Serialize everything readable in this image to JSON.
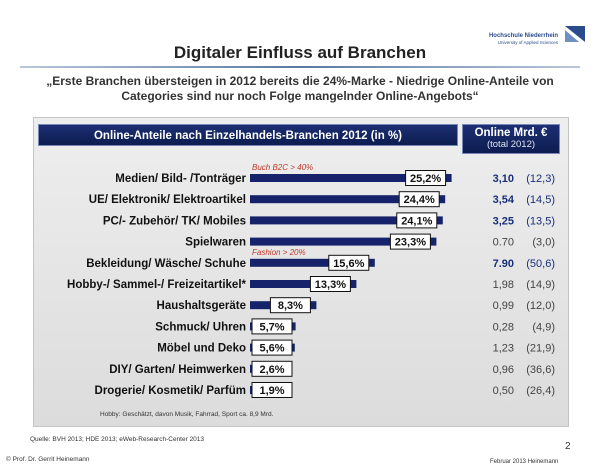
{
  "slide": {
    "title": "Digitaler Einfluss auf Branchen",
    "subtitle": "„Erste Branchen übersteigen in 2012 bereits die 24%-Marke - Niedrige Online-Anteile von Categories sind nur noch Folge mangelnder Online-Angebots“",
    "logo": {
      "name": "Hochschule Niederrhein",
      "tagline": "University of Applied Sciences",
      "icon": "hochschule-logo-icon"
    },
    "footnote": "Hobby: Geschätzt, davon Musik, Fahrrad, Sport ca. 8,9 Mrd.",
    "source": "Quelle: BVH 2013; HDE 2013; eWeb-Research-Center 2013",
    "copyright": "© Prof. Dr. Gerrit Heinemann",
    "page_number": "2",
    "date": "Februar 2013 Heinemann"
  },
  "chart_data": {
    "type": "bar",
    "orientation": "horizontal",
    "title": "Online-Anteile nach Einzelhandels-Branchen 2012 (in %)",
    "categories": [
      "Medien/ Bild- /Tonträger",
      "UE/ Elektronik/ Elektroartikel",
      "PC/- Zubehör/ TK/ Mobiles",
      "Spielwaren",
      "Bekleidung/ Wäsche/ Schuhe",
      "Hobby-/ Sammel-/ Freizeitartikel*",
      "Haushaltsgeräte",
      "Schmuck/ Uhren",
      "Möbel und Deko",
      "DIY/ Garten/ Heimwerken",
      "Drogerie/ Kosmetik/ Parfüm"
    ],
    "values": [
      25.2,
      24.4,
      24.1,
      23.3,
      15.6,
      13.3,
      8.3,
      5.7,
      5.6,
      2.6,
      1.9
    ],
    "value_labels": [
      "25,2%",
      "24,4%",
      "24,1%",
      "23,3%",
      "15,6%",
      "13,3%",
      "8,3%",
      "5,7%",
      "5,6%",
      "2,6%",
      "1,9%"
    ],
    "xlim": [
      0,
      30
    ],
    "bar_color": "#16236b",
    "annotations": [
      {
        "text": "Buch B2C > 40%",
        "above_category": 0,
        "color": "#c0392b"
      },
      {
        "text": "Fashion > 20%",
        "above_category": 4,
        "color": "#c0392b"
      }
    ],
    "side_column": {
      "header": "Online Mrd. €",
      "subheader": "(total 2012)",
      "rows": [
        {
          "value": "3,10",
          "total": "(12,3)",
          "bold": true
        },
        {
          "value": "3,54",
          "total": "(14,5)",
          "bold": true
        },
        {
          "value": "3,25",
          "total": "(13,5)",
          "bold": true
        },
        {
          "value": "0.70",
          "total": "(3,0)",
          "bold": false
        },
        {
          "value": "7.90",
          "total": "(50,6)",
          "bold": true
        },
        {
          "value": "1,98",
          "total": "(14,9)",
          "bold": false
        },
        {
          "value": "0,99",
          "total": "(12,0)",
          "bold": false
        },
        {
          "value": "0,28",
          "total": "(4,9)",
          "bold": false
        },
        {
          "value": "1,23",
          "total": "(21,9)",
          "bold": false
        },
        {
          "value": "0,96",
          "total": "(36,6)",
          "bold": false
        },
        {
          "value": "0,50",
          "total": "(26,4)",
          "bold": false
        }
      ],
      "bold_color": "#1a2f7a",
      "normal_color": "#444444"
    }
  }
}
